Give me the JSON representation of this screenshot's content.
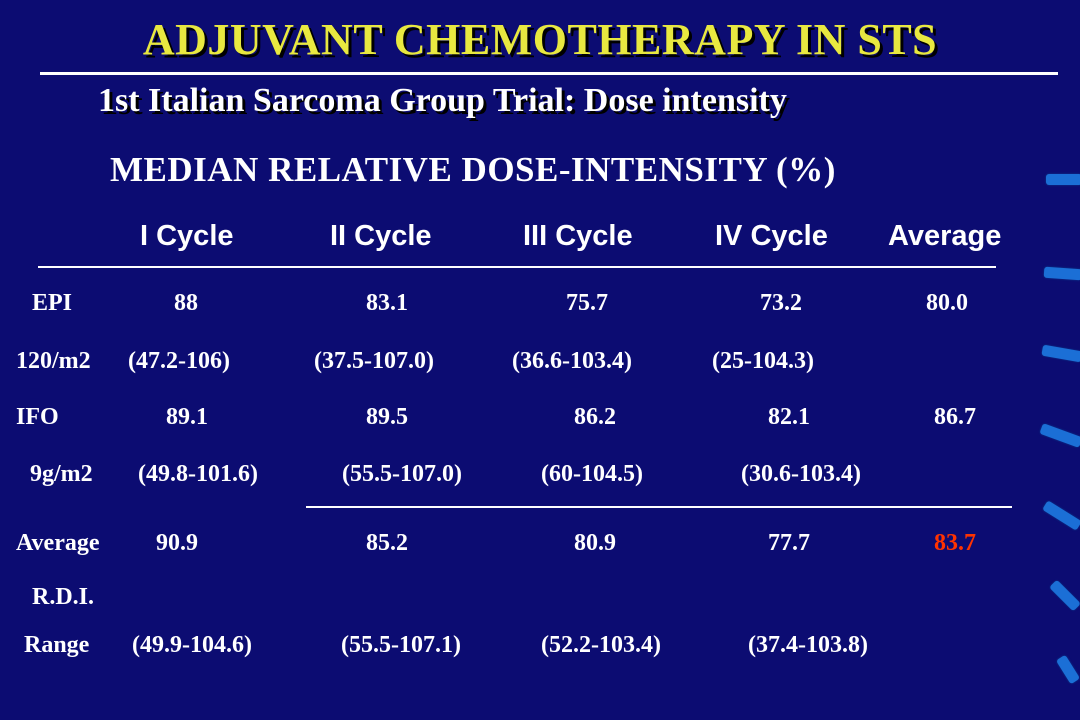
{
  "title": "ADJUVANT CHEMOTHERAPY IN STS",
  "subtitle": "1st Italian Sarcoma Group Trial: Dose intensity",
  "section_heading": "MEDIAN RELATIVE DOSE-INTENSITY (%)",
  "columns": [
    "I Cycle",
    "II Cycle",
    "III Cycle",
    "IV Cycle",
    "Average"
  ],
  "rows": {
    "epi": {
      "label": "EPI",
      "values": [
        "88",
        "83.1",
        "75.7",
        "73.2",
        "80.0"
      ]
    },
    "epi_range": {
      "label": "120/m2",
      "values": [
        "(47.2-106)",
        "(37.5-107.0)",
        "(36.6-103.4)",
        "(25-104.3)"
      ]
    },
    "ifo": {
      "label": "IFO",
      "values": [
        "89.1",
        "89.5",
        "86.2",
        "82.1",
        "86.7"
      ]
    },
    "ifo_range": {
      "label": "9g/m2",
      "values": [
        "(49.8-101.6)",
        "(55.5-107.0)",
        "(60-104.5)",
        "(30.6-103.4)"
      ]
    },
    "average": {
      "label": "Average",
      "values": [
        "90.9",
        "85.2",
        "80.9",
        "77.7",
        "83.7"
      ]
    },
    "rdi": {
      "label": "R.D.I."
    },
    "range": {
      "label": "Range",
      "values": [
        "(49.9-104.6)",
        "(55.5-107.1)",
        "(52.2-103.4)",
        "(37.4-103.8)"
      ]
    }
  },
  "colors": {
    "background": "#0c0c72",
    "title": "#e8e840",
    "highlight": "#ff3300",
    "decoration": "#1b6fd6"
  }
}
